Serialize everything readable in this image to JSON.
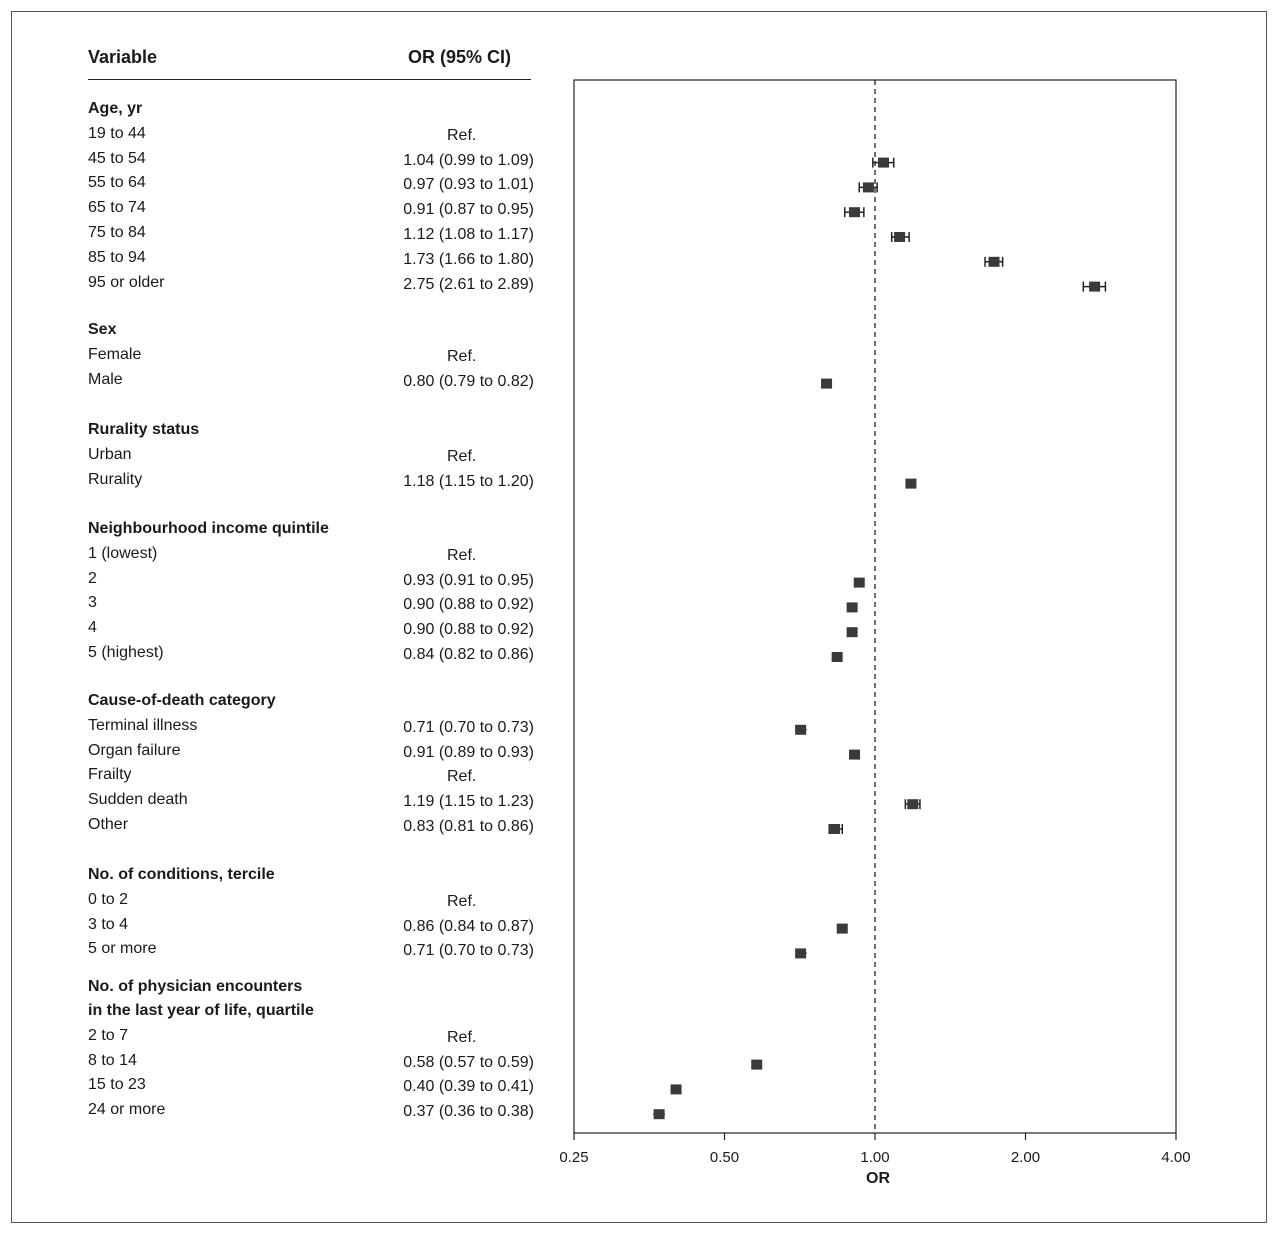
{
  "header": {
    "variable": "Variable",
    "or_ci": "OR (95% CI)"
  },
  "chart_data": {
    "type": "forest",
    "xlabel": "OR",
    "xscale": "log2",
    "xlim": [
      0.25,
      4.0
    ],
    "xticks": [
      "0.25",
      "0.50",
      "1.00",
      "2.00",
      "4.00"
    ],
    "reference_line": 1.0,
    "marker_color": "#3a3a3a",
    "groups": [
      {
        "label": "Age, yr",
        "items": [
          {
            "label": "19 to 44",
            "text": "Ref.",
            "or": null,
            "lo": null,
            "hi": null
          },
          {
            "label": "45 to 54",
            "text": "1.04 (0.99 to 1.09)",
            "or": 1.04,
            "lo": 0.99,
            "hi": 1.09
          },
          {
            "label": "55 to 64",
            "text": "0.97 (0.93 to 1.01)",
            "or": 0.97,
            "lo": 0.93,
            "hi": 1.01
          },
          {
            "label": "65 to 74",
            "text": "0.91 (0.87 to 0.95)",
            "or": 0.91,
            "lo": 0.87,
            "hi": 0.95
          },
          {
            "label": "75 to 84",
            "text": "1.12 (1.08 to 1.17)",
            "or": 1.12,
            "lo": 1.08,
            "hi": 1.17
          },
          {
            "label": "85 to 94",
            "text": "1.73 (1.66 to 1.80)",
            "or": 1.73,
            "lo": 1.66,
            "hi": 1.8
          },
          {
            "label": "95 or older",
            "text": "2.75 (2.61 to 2.89)",
            "or": 2.75,
            "lo": 2.61,
            "hi": 2.89
          }
        ]
      },
      {
        "label": "Sex",
        "items": [
          {
            "label": "Female",
            "text": "Ref.",
            "or": null,
            "lo": null,
            "hi": null
          },
          {
            "label": "Male",
            "text": "0.80 (0.79 to 0.82)",
            "or": 0.8,
            "lo": 0.79,
            "hi": 0.82
          }
        ]
      },
      {
        "label": "Rurality status",
        "items": [
          {
            "label": "Urban",
            "text": "Ref.",
            "or": null,
            "lo": null,
            "hi": null
          },
          {
            "label": "Rurality",
            "text": "1.18 (1.15 to 1.20)",
            "or": 1.18,
            "lo": 1.15,
            "hi": 1.2
          }
        ]
      },
      {
        "label": "Neighbourhood income quintile",
        "items": [
          {
            "label": "1 (lowest)",
            "text": "Ref.",
            "or": null,
            "lo": null,
            "hi": null
          },
          {
            "label": "2",
            "text": "0.93 (0.91 to 0.95)",
            "or": 0.93,
            "lo": 0.91,
            "hi": 0.95
          },
          {
            "label": "3",
            "text": "0.90 (0.88 to 0.92)",
            "or": 0.9,
            "lo": 0.88,
            "hi": 0.92
          },
          {
            "label": "4",
            "text": "0.90 (0.88 to 0.92)",
            "or": 0.9,
            "lo": 0.88,
            "hi": 0.92
          },
          {
            "label": "5 (highest)",
            "text": "0.84 (0.82 to 0.86)",
            "or": 0.84,
            "lo": 0.82,
            "hi": 0.86
          }
        ]
      },
      {
        "label": "Cause-of-death category",
        "items": [
          {
            "label": "Terminal illness",
            "text": "0.71 (0.70 to 0.73)",
            "or": 0.71,
            "lo": 0.7,
            "hi": 0.73
          },
          {
            "label": "Organ failure",
            "text": "0.91 (0.89 to 0.93)",
            "or": 0.91,
            "lo": 0.89,
            "hi": 0.93
          },
          {
            "label": "Frailty",
            "text": "Ref.",
            "or": null,
            "lo": null,
            "hi": null
          },
          {
            "label": "Sudden death",
            "text": "1.19 (1.15 to 1.23)",
            "or": 1.19,
            "lo": 1.15,
            "hi": 1.23
          },
          {
            "label": "Other",
            "text": "0.83 (0.81 to 0.86)",
            "or": 0.83,
            "lo": 0.81,
            "hi": 0.86
          }
        ]
      },
      {
        "label": "No. of conditions, tercile",
        "items": [
          {
            "label": "0 to 2",
            "text": "Ref.",
            "or": null,
            "lo": null,
            "hi": null
          },
          {
            "label": "3 to 4",
            "text": "0.86 (0.84 to 0.87)",
            "or": 0.86,
            "lo": 0.84,
            "hi": 0.87
          },
          {
            "label": "5 or more",
            "text": "0.71 (0.70 to 0.73)",
            "or": 0.71,
            "lo": 0.7,
            "hi": 0.73
          }
        ]
      },
      {
        "label": "No. of physician encounters",
        "label2": "in the last year of life, quartile",
        "items": [
          {
            "label": "2 to 7",
            "text": "Ref.",
            "or": null,
            "lo": null,
            "hi": null
          },
          {
            "label": "8 to 14",
            "text": "0.58 (0.57 to 0.59)",
            "or": 0.58,
            "lo": 0.57,
            "hi": 0.59
          },
          {
            "label": "15 to 23",
            "text": "0.40 (0.39 to 0.41)",
            "or": 0.4,
            "lo": 0.39,
            "hi": 0.41
          },
          {
            "label": "24 or more",
            "text": "0.37 (0.36 to 0.38)",
            "or": 0.37,
            "lo": 0.36,
            "hi": 0.38
          }
        ]
      }
    ]
  }
}
